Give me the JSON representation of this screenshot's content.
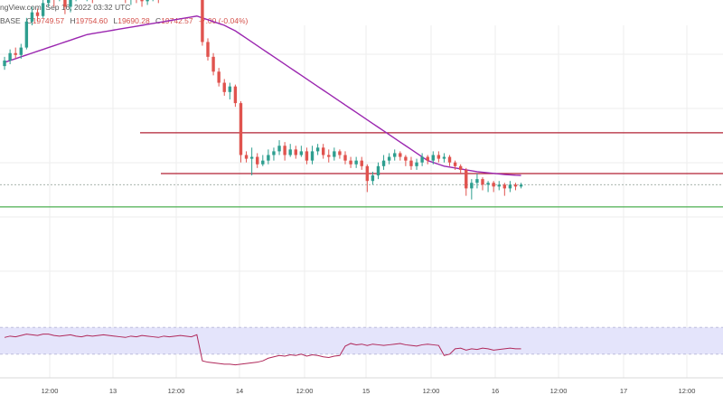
{
  "header": {
    "source_line": "ngView.com, Sep 16, 2022 03:32 UTC",
    "symbol_fragment": "BASE",
    "open_label": "O",
    "open_value": "19749.57",
    "high_label": "H",
    "high_value": "19754.60",
    "low_label": "L",
    "low_value": "19690.28",
    "close_label": "C",
    "close_value": "19742.57",
    "change_value": "-7.00 (-0.04%)"
  },
  "colors": {
    "up": "#2e9e8f",
    "down": "#e0534e",
    "ma": "#9b27b0",
    "resistance": "#b22234",
    "support": "#4caf50",
    "rsi_line": "#b0285a",
    "rsi_band": "#e4e4fb",
    "grid": "#eeeeee"
  },
  "chart_data": [
    {
      "type": "candlestick",
      "x_tick_labels": [
        "12:00",
        "13",
        "12:00",
        "14",
        "12:00",
        "15",
        "12:00",
        "16",
        "12:00",
        "17",
        "12:00"
      ],
      "grid": true,
      "candles": [
        [
          0.18,
          0.21,
          0.23,
          0.16
        ],
        [
          0.21,
          0.25,
          0.27,
          0.19
        ],
        [
          0.25,
          0.24,
          0.28,
          0.22
        ],
        [
          0.24,
          0.28,
          0.3,
          0.22
        ],
        [
          0.28,
          0.42,
          0.44,
          0.27
        ],
        [
          0.42,
          0.47,
          0.5,
          0.4
        ],
        [
          0.47,
          0.45,
          0.49,
          0.42
        ],
        [
          0.45,
          0.52,
          0.55,
          0.44
        ],
        [
          0.52,
          0.56,
          0.6,
          0.5
        ],
        [
          0.56,
          0.54,
          0.58,
          0.5
        ],
        [
          0.54,
          0.58,
          0.61,
          0.53
        ],
        [
          0.58,
          0.5,
          0.59,
          0.46
        ],
        [
          0.5,
          0.54,
          0.57,
          0.47
        ],
        [
          0.54,
          0.6,
          0.63,
          0.53
        ],
        [
          0.6,
          0.56,
          0.62,
          0.54
        ],
        [
          0.56,
          0.58,
          0.6,
          0.53
        ],
        [
          0.58,
          0.55,
          0.6,
          0.52
        ],
        [
          0.55,
          0.6,
          0.62,
          0.54
        ],
        [
          0.6,
          0.62,
          0.64,
          0.58
        ],
        [
          0.62,
          0.6,
          0.64,
          0.57
        ],
        [
          0.6,
          0.57,
          0.61,
          0.54
        ],
        [
          0.57,
          0.6,
          0.62,
          0.55
        ],
        [
          0.6,
          0.54,
          0.61,
          0.52
        ],
        [
          0.54,
          0.57,
          0.58,
          0.51
        ],
        [
          0.57,
          0.55,
          0.59,
          0.52
        ],
        [
          0.55,
          0.53,
          0.57,
          0.5
        ],
        [
          0.53,
          0.55,
          0.57,
          0.51
        ],
        [
          0.55,
          0.58,
          0.59,
          0.53
        ],
        [
          0.58,
          0.55,
          0.6,
          0.52
        ],
        [
          0.55,
          0.6,
          0.65,
          0.54
        ],
        [
          0.6,
          0.57,
          0.61,
          0.55
        ],
        [
          0.57,
          0.62,
          0.64,
          0.55
        ],
        [
          0.62,
          0.58,
          0.66,
          0.55
        ],
        [
          0.58,
          0.61,
          0.62,
          0.56
        ],
        [
          0.61,
          0.67,
          0.7,
          0.6
        ],
        [
          0.67,
          0.71,
          0.74,
          0.66
        ],
        [
          0.71,
          0.31,
          0.76,
          0.29
        ],
        [
          0.31,
          0.23,
          0.33,
          0.21
        ],
        [
          0.23,
          0.15,
          0.25,
          0.13
        ],
        [
          0.15,
          0.09,
          0.17,
          0.07
        ],
        [
          0.09,
          0.04,
          0.11,
          0.02
        ],
        [
          0.04,
          0.07,
          0.09,
          0.0
        ],
        [
          0.07,
          -0.02,
          0.08,
          -0.04
        ],
        [
          -0.02,
          -0.3,
          -0.01,
          -0.34
        ],
        [
          -0.3,
          -0.32,
          -0.28,
          -0.34
        ],
        [
          -0.32,
          -0.31,
          -0.26,
          -0.41
        ],
        [
          -0.31,
          -0.35,
          -0.29,
          -0.37
        ],
        [
          -0.35,
          -0.33,
          -0.3,
          -0.36
        ],
        [
          -0.33,
          -0.3,
          -0.27,
          -0.35
        ],
        [
          -0.3,
          -0.28,
          -0.26,
          -0.33
        ],
        [
          -0.28,
          -0.25,
          -0.22,
          -0.3
        ],
        [
          -0.25,
          -0.3,
          -0.23,
          -0.33
        ],
        [
          -0.3,
          -0.27,
          -0.24,
          -0.31
        ],
        [
          -0.27,
          -0.3,
          -0.25,
          -0.32
        ],
        [
          -0.3,
          -0.28,
          -0.25,
          -0.31
        ],
        [
          -0.28,
          -0.33,
          -0.26,
          -0.35
        ],
        [
          -0.33,
          -0.28,
          -0.25,
          -0.35
        ],
        [
          -0.28,
          -0.26,
          -0.24,
          -0.3
        ],
        [
          -0.26,
          -0.3,
          -0.24,
          -0.32
        ],
        [
          -0.3,
          -0.31,
          -0.27,
          -0.34
        ],
        [
          -0.31,
          -0.28,
          -0.26,
          -0.33
        ],
        [
          -0.28,
          -0.3,
          -0.27,
          -0.32
        ],
        [
          -0.3,
          -0.33,
          -0.28,
          -0.35
        ],
        [
          -0.33,
          -0.35,
          -0.31,
          -0.37
        ],
        [
          -0.35,
          -0.33,
          -0.31,
          -0.37
        ],
        [
          -0.33,
          -0.36,
          -0.31,
          -0.38
        ],
        [
          -0.36,
          -0.44,
          -0.35,
          -0.5
        ],
        [
          -0.44,
          -0.41,
          -0.39,
          -0.46
        ],
        [
          -0.41,
          -0.36,
          -0.34,
          -0.43
        ],
        [
          -0.36,
          -0.33,
          -0.3,
          -0.38
        ],
        [
          -0.33,
          -0.31,
          -0.29,
          -0.35
        ],
        [
          -0.31,
          -0.29,
          -0.27,
          -0.33
        ],
        [
          -0.29,
          -0.31,
          -0.28,
          -0.33
        ],
        [
          -0.31,
          -0.33,
          -0.3,
          -0.36
        ],
        [
          -0.33,
          -0.36,
          -0.31,
          -0.38
        ],
        [
          -0.36,
          -0.34,
          -0.32,
          -0.38
        ],
        [
          -0.34,
          -0.31,
          -0.29,
          -0.36
        ],
        [
          -0.31,
          -0.33,
          -0.3,
          -0.35
        ],
        [
          -0.33,
          -0.3,
          -0.28,
          -0.35
        ],
        [
          -0.3,
          -0.32,
          -0.28,
          -0.34
        ],
        [
          -0.32,
          -0.31,
          -0.29,
          -0.34
        ],
        [
          -0.31,
          -0.34,
          -0.3,
          -0.36
        ],
        [
          -0.34,
          -0.36,
          -0.33,
          -0.38
        ],
        [
          -0.36,
          -0.38,
          -0.35,
          -0.4
        ],
        [
          -0.38,
          -0.48,
          -0.37,
          -0.52
        ],
        [
          -0.48,
          -0.45,
          -0.43,
          -0.54
        ],
        [
          -0.45,
          -0.43,
          -0.4,
          -0.48
        ],
        [
          -0.43,
          -0.46,
          -0.42,
          -0.49
        ],
        [
          -0.46,
          -0.45,
          -0.44,
          -0.5
        ],
        [
          -0.45,
          -0.47,
          -0.44,
          -0.5
        ],
        [
          -0.47,
          -0.46,
          -0.44,
          -0.49
        ],
        [
          -0.46,
          -0.48,
          -0.45,
          -0.52
        ],
        [
          -0.48,
          -0.46,
          -0.44,
          -0.5
        ],
        [
          -0.46,
          -0.47,
          -0.45,
          -0.49
        ],
        [
          -0.47,
          -0.46,
          -0.45,
          -0.48
        ]
      ],
      "moving_average": [
        0.2,
        0.21,
        0.22,
        0.23,
        0.24,
        0.25,
        0.26,
        0.27,
        0.28,
        0.29,
        0.3,
        0.31,
        0.32,
        0.33,
        0.34,
        0.35,
        0.355,
        0.36,
        0.365,
        0.37,
        0.375,
        0.38,
        0.385,
        0.39,
        0.395,
        0.4,
        0.405,
        0.41,
        0.415,
        0.42,
        0.425,
        0.43,
        0.435,
        0.44,
        0.445,
        0.45,
        0.44,
        0.43,
        0.42,
        0.41,
        0.4,
        0.385,
        0.37,
        0.35,
        0.33,
        0.31,
        0.29,
        0.27,
        0.25,
        0.23,
        0.21,
        0.19,
        0.17,
        0.15,
        0.13,
        0.11,
        0.09,
        0.07,
        0.05,
        0.03,
        0.01,
        -0.01,
        -0.03,
        -0.05,
        -0.07,
        -0.09,
        -0.11,
        -0.13,
        -0.15,
        -0.17,
        -0.19,
        -0.21,
        -0.23,
        -0.25,
        -0.27,
        -0.29,
        -0.31,
        -0.33,
        -0.34,
        -0.35,
        -0.36,
        -0.365,
        -0.37,
        -0.375,
        -0.38,
        -0.385,
        -0.39,
        -0.393,
        -0.396,
        -0.399,
        -0.402,
        -0.405,
        -0.407,
        -0.409,
        -0.41
      ],
      "price_lines": [
        {
          "name": "resistance-1",
          "value": -0.18,
          "color_key": "resistance"
        },
        {
          "name": "resistance-2",
          "value": -0.4,
          "color_key": "resistance"
        },
        {
          "name": "support-1",
          "value": -0.58,
          "color_key": "support"
        }
      ],
      "rsi": {
        "values": [
          55,
          57,
          56,
          58,
          60,
          59,
          58,
          60,
          60,
          58,
          57,
          58,
          59,
          57,
          56,
          58,
          57,
          58,
          59,
          58,
          57,
          56,
          55,
          57,
          56,
          58,
          57,
          56,
          55,
          57,
          56,
          57,
          58,
          57,
          56,
          59,
          20,
          18,
          17,
          16,
          15,
          15,
          14,
          15,
          16,
          17,
          18,
          20,
          24,
          26,
          28,
          27,
          29,
          28,
          30,
          27,
          29,
          28,
          26,
          25,
          27,
          28,
          42,
          46,
          44,
          45,
          43,
          45,
          44,
          43,
          44,
          45,
          46,
          44,
          43,
          42,
          44,
          45,
          44,
          43,
          28,
          30,
          38,
          39,
          36,
          38,
          37,
          39,
          38,
          36,
          37,
          38,
          39,
          38,
          38
        ],
        "band_upper": 70,
        "band_lower": 30
      }
    }
  ]
}
